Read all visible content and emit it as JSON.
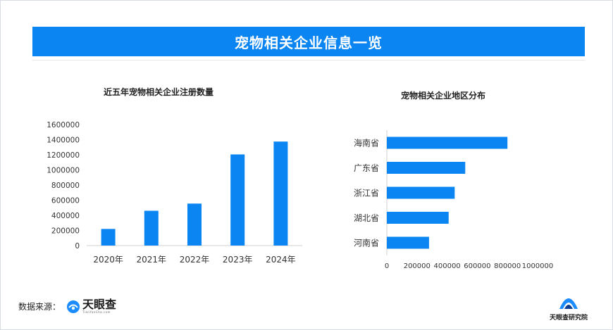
{
  "banner": {
    "title": "宠物相关企业信息一览"
  },
  "charts": [
    {
      "type": "bar",
      "title": "近五年宠物相关企业注册数量",
      "categories": [
        "2020年",
        "2021年",
        "2022年",
        "2023年",
        "2024年"
      ],
      "values": [
        220000,
        460000,
        555000,
        1205000,
        1375000
      ],
      "ylim": [
        0,
        1600000
      ],
      "yticks": [
        "0",
        "200000",
        "400000",
        "600000",
        "800000",
        "1000000",
        "1200000",
        "1400000",
        "1600000"
      ],
      "color": "#0a85f1"
    },
    {
      "type": "bar",
      "orientation": "horizontal",
      "title": "宠物相关企业地区分布",
      "categories": [
        "海南省",
        "广东省",
        "浙江省",
        "湖北省",
        "河南省"
      ],
      "values": [
        800000,
        520000,
        450000,
        410000,
        280000
      ],
      "xlim": [
        0,
        1000000
      ],
      "xticks": [
        "0",
        "200000",
        "400000",
        "600000",
        "800000",
        "1000000"
      ],
      "color": "#0a85f1"
    }
  ],
  "footer": {
    "source_label": "数据来源：",
    "brand_name": "天眼查",
    "brand_sub": "TianYanCha.com",
    "institute": "天眼查研究院"
  }
}
